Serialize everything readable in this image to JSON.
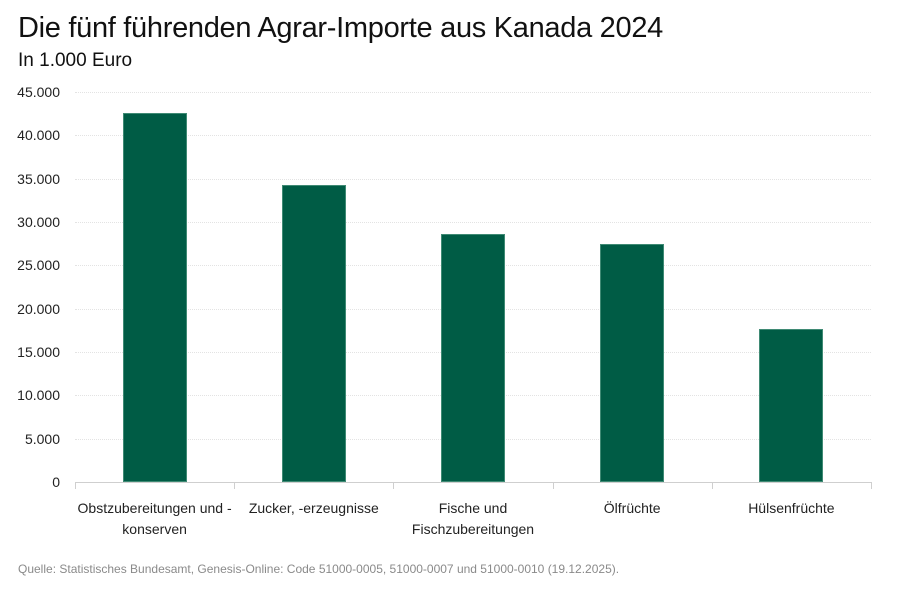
{
  "header": {
    "title": "Die fünf führenden Agrar-Importe aus Kanada 2024",
    "subtitle": "In 1.000 Euro"
  },
  "footer": {
    "source": "Quelle: Statistisches Bundesamt, Genesis-Online: Code 51000-0005, 51000-0007 und 51000-0010 (19.12.2025)."
  },
  "axis": {
    "y_ticks": [
      "0",
      "5.000",
      "10.000",
      "15.000",
      "20.000",
      "25.000",
      "30.000",
      "35.000",
      "40.000",
      "45.000"
    ]
  },
  "colors": {
    "bar": "#005c45"
  },
  "chart_data": {
    "type": "bar",
    "title": "Die fünf führenden Agrar-Importe aus Kanada 2024",
    "subtitle": "In 1.000 Euro",
    "xlabel": "",
    "ylabel": "In 1.000 Euro",
    "categories": [
      "Obstzubereitungen und -konserven",
      "Zucker, -erzeugnisse",
      "Fische und Fischzubereitungen",
      "Ölfrüchte",
      "Hülsenfrüchte"
    ],
    "category_labels_display": [
      [
        "Obstzubereitungen und -",
        "konserven"
      ],
      [
        "Zucker, -erzeugnisse"
      ],
      [
        "Fische und",
        "Fischzubereitungen"
      ],
      [
        "Ölfrüchte"
      ],
      [
        "Hülsenfrüchte"
      ]
    ],
    "values": [
      42600,
      34300,
      28600,
      27500,
      17600
    ],
    "ylim": [
      0,
      45000
    ],
    "y_tick_step": 5000,
    "grid": true,
    "legend": null,
    "source": "Quelle: Statistisches Bundesamt, Genesis-Online: Code 51000-0005, 51000-0007 und 51000-0010 (19.12.2025)."
  }
}
